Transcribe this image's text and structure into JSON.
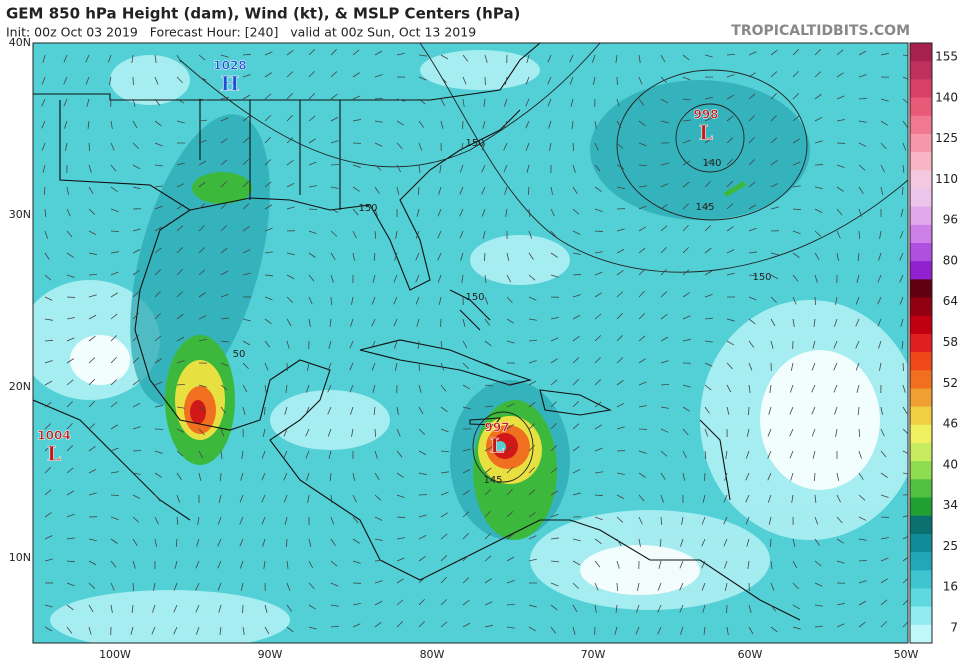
{
  "header": {
    "title": "GEM 850 hPa Height (dam), Wind (kt), & MSLP Centers (hPa)",
    "subtitle": "Init: 00z Oct 03 2019   Forecast Hour: [240]   valid at 00z Sun, Oct 13 2019",
    "watermark": "TROPICALTIDBITS.COM"
  },
  "map": {
    "lat_labels": [
      "40N",
      "30N",
      "20N",
      "10N"
    ],
    "lon_labels": [
      "100W",
      "90W",
      "80W",
      "70W",
      "60W",
      "50W"
    ],
    "pressure_centers": [
      {
        "value": "1028",
        "letter": "H"
      },
      {
        "value": "998",
        "letter": "L"
      },
      {
        "value": "997",
        "letter": "L"
      },
      {
        "value": "1004",
        "letter": "L"
      }
    ],
    "contour_labels": [
      "150",
      "150",
      "140",
      "145",
      "150",
      "150",
      "145",
      "50"
    ]
  },
  "colorbar": {
    "labels": [
      155,
      140,
      125,
      110,
      96,
      80,
      64,
      58,
      52,
      46,
      40,
      34,
      25,
      16,
      7
    ]
  }
}
